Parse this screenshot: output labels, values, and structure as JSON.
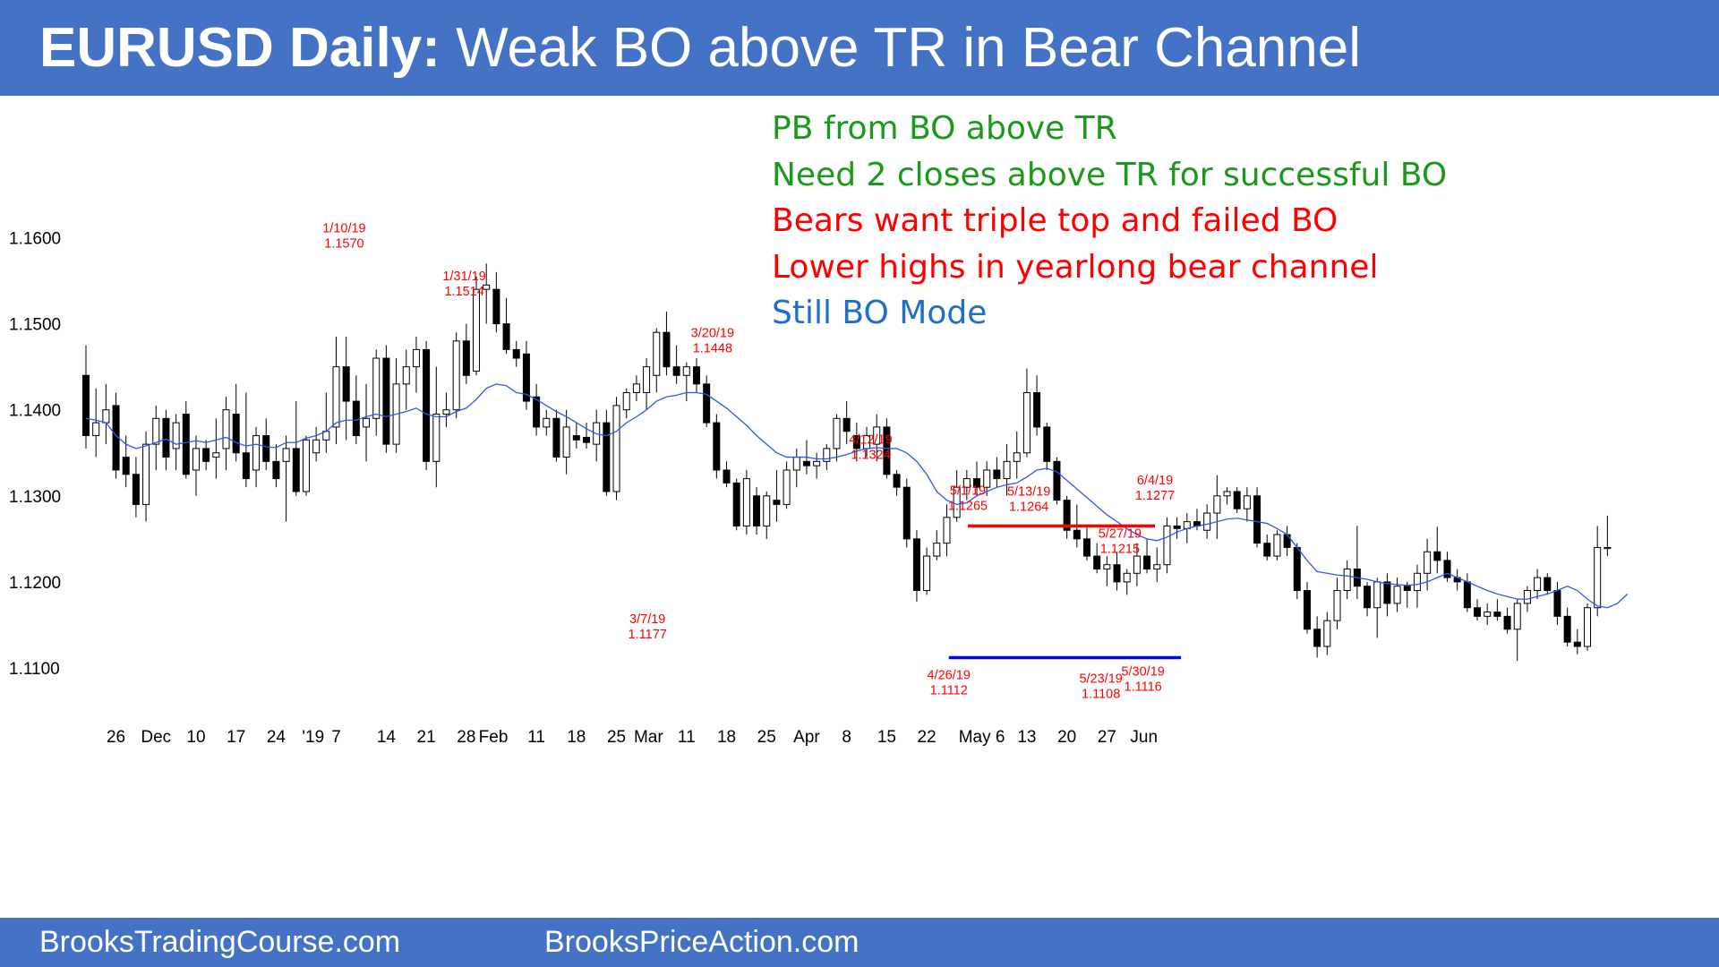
{
  "header": {
    "title_bold": "EURUSD Daily:",
    "title_rest": "Weak BO above TR in Bear Channel"
  },
  "notes": [
    {
      "text": "PB from BO above TR",
      "color": "#1a9a1a"
    },
    {
      "text": "Need 2 closes above TR for successful BO",
      "color": "#1a9a1a"
    },
    {
      "text": "Bears want triple top and failed BO",
      "color": "#ff0000"
    },
    {
      "text": "Lower highs in yearlong bear channel",
      "color": "#ff0000"
    },
    {
      "text": "Still BO Mode",
      "color": "#1f6fc6"
    }
  ],
  "footer": {
    "left": "BrooksTradingCourse.com",
    "right": "BrooksPriceAction.com"
  },
  "colors": {
    "header_bg": "#4472c4",
    "moving_average": "#3355ee",
    "annotation": "#ff0000",
    "resistance": "#ff0000",
    "support": "#0000ff"
  },
  "chart_data": {
    "type": "candlestick",
    "y_ticks": [
      "1.1100",
      "1.1200",
      "1.1300",
      "1.1400",
      "1.1500",
      "1.1600"
    ],
    "ylim": [
      1.1025,
      1.168
    ],
    "x_ticks": [
      "26",
      "Dec",
      "10",
      "17",
      "24",
      "'19",
      "7",
      "14",
      "21",
      "28",
      "Feb",
      "11",
      "18",
      "25",
      "Mar",
      "11",
      "18",
      "25",
      "Apr",
      "8",
      "15",
      "22",
      "May 6",
      "13",
      "20",
      "27",
      "Jun"
    ],
    "x_tick_bars": [
      3,
      7,
      11,
      15,
      19,
      22.7,
      25,
      30,
      34,
      38,
      40.7,
      45,
      49,
      53,
      56.2,
      60,
      64,
      68,
      72,
      76,
      80,
      84,
      89.5,
      94,
      98,
      102,
      105.7
    ],
    "candles": [
      [
        1.144,
        1.1475,
        1.1355,
        1.137
      ],
      [
        1.137,
        1.1425,
        1.1345,
        1.1385
      ],
      [
        1.1385,
        1.143,
        1.136,
        1.14
      ],
      [
        1.1405,
        1.142,
        1.132,
        1.133
      ],
      [
        1.1345,
        1.137,
        1.131,
        1.1325
      ],
      [
        1.1325,
        1.1345,
        1.1275,
        1.129
      ],
      [
        1.129,
        1.1375,
        1.127,
        1.136
      ],
      [
        1.136,
        1.1405,
        1.133,
        1.139
      ],
      [
        1.139,
        1.14,
        1.133,
        1.1345
      ],
      [
        1.1355,
        1.1395,
        1.133,
        1.1385
      ],
      [
        1.1395,
        1.141,
        1.132,
        1.1325
      ],
      [
        1.133,
        1.137,
        1.13,
        1.1355
      ],
      [
        1.1355,
        1.1365,
        1.133,
        1.134
      ],
      [
        1.1345,
        1.139,
        1.132,
        1.135
      ],
      [
        1.1355,
        1.1415,
        1.133,
        1.14
      ],
      [
        1.1395,
        1.143,
        1.134,
        1.135
      ],
      [
        1.135,
        1.142,
        1.131,
        1.132
      ],
      [
        1.133,
        1.138,
        1.131,
        1.137
      ],
      [
        1.137,
        1.139,
        1.133,
        1.134
      ],
      [
        1.134,
        1.136,
        1.131,
        1.132
      ],
      [
        1.134,
        1.137,
        1.127,
        1.1355
      ],
      [
        1.1355,
        1.141,
        1.13,
        1.1305
      ],
      [
        1.1305,
        1.137,
        1.13,
        1.1365
      ],
      [
        1.135,
        1.138,
        1.134,
        1.1365
      ],
      [
        1.1365,
        1.142,
        1.135,
        1.1375
      ],
      [
        1.138,
        1.1485,
        1.136,
        1.145
      ],
      [
        1.145,
        1.1485,
        1.1365,
        1.141
      ],
      [
        1.141,
        1.144,
        1.136,
        1.137
      ],
      [
        1.138,
        1.143,
        1.134,
        1.139
      ],
      [
        1.139,
        1.147,
        1.137,
        1.146
      ],
      [
        1.146,
        1.1475,
        1.135,
        1.136
      ],
      [
        1.136,
        1.146,
        1.135,
        1.143
      ],
      [
        1.143,
        1.147,
        1.14,
        1.145
      ],
      [
        1.145,
        1.1485,
        1.142,
        1.147
      ],
      [
        1.147,
        1.148,
        1.133,
        1.134
      ],
      [
        1.134,
        1.145,
        1.131,
        1.1395
      ],
      [
        1.1395,
        1.142,
        1.138,
        1.14
      ],
      [
        1.14,
        1.149,
        1.139,
        1.148
      ],
      [
        1.148,
        1.15,
        1.143,
        1.144
      ],
      [
        1.1445,
        1.1555,
        1.144,
        1.154
      ],
      [
        1.154,
        1.157,
        1.15,
        1.1545
      ],
      [
        1.154,
        1.156,
        1.149,
        1.15
      ],
      [
        1.15,
        1.153,
        1.1465,
        1.147
      ],
      [
        1.147,
        1.148,
        1.145,
        1.146
      ],
      [
        1.1465,
        1.148,
        1.14,
        1.141
      ],
      [
        1.1415,
        1.143,
        1.137,
        1.138
      ],
      [
        1.138,
        1.14,
        1.137,
        1.139
      ],
      [
        1.139,
        1.14,
        1.134,
        1.1345
      ],
      [
        1.1345,
        1.14,
        1.1325,
        1.138
      ],
      [
        1.137,
        1.1385,
        1.1355,
        1.1365
      ],
      [
        1.1368,
        1.1385,
        1.1355,
        1.1362
      ],
      [
        1.136,
        1.14,
        1.134,
        1.1385
      ],
      [
        1.1385,
        1.14,
        1.13,
        1.1305
      ],
      [
        1.1305,
        1.1415,
        1.1295,
        1.1405
      ]
    ],
    "candles_part2": [
      [
        1.14,
        1.1425,
        1.139,
        1.142
      ],
      [
        1.142,
        1.144,
        1.141,
        1.143
      ],
      [
        1.142,
        1.146,
        1.14,
        1.145
      ],
      [
        1.144,
        1.1495,
        1.142,
        1.149
      ],
      [
        1.149,
        1.1514,
        1.144,
        1.145
      ],
      [
        1.145,
        1.1475,
        1.143,
        1.144
      ],
      [
        1.144,
        1.1455,
        1.141,
        1.145
      ],
      [
        1.145,
        1.146,
        1.142,
        1.143
      ],
      [
        1.143,
        1.144,
        1.138,
        1.1385
      ],
      [
        1.1385,
        1.1395,
        1.132,
        1.133
      ],
      [
        1.133,
        1.134,
        1.131,
        1.1315
      ],
      [
        1.1315,
        1.132,
        1.126,
        1.1265
      ],
      [
        1.1265,
        1.133,
        1.1255,
        1.132
      ],
      [
        1.13,
        1.131,
        1.1255,
        1.1265
      ],
      [
        1.1265,
        1.1305,
        1.125,
        1.13
      ],
      [
        1.1295,
        1.133,
        1.127,
        1.129
      ],
      [
        1.129,
        1.134,
        1.1285,
        1.133
      ],
      [
        1.133,
        1.1355,
        1.131,
        1.1345
      ],
      [
        1.134,
        1.1365,
        1.1325,
        1.1335
      ],
      [
        1.1335,
        1.135,
        1.132,
        1.134
      ],
      [
        1.134,
        1.136,
        1.133,
        1.1355
      ],
      [
        1.1355,
        1.1395,
        1.134,
        1.139
      ],
      [
        1.139,
        1.141,
        1.136,
        1.1375
      ],
      [
        1.137,
        1.1385,
        1.134,
        1.1355
      ],
      [
        1.1355,
        1.138,
        1.1345,
        1.137
      ],
      [
        1.136,
        1.1395,
        1.134,
        1.138
      ]
    ],
    "candles_part3": [
      [
        1.138,
        1.139,
        1.132,
        1.1325
      ],
      [
        1.1325,
        1.133,
        1.13,
        1.131
      ],
      [
        1.131,
        1.132,
        1.124,
        1.125
      ],
      [
        1.125,
        1.126,
        1.1177,
        1.119
      ],
      [
        1.119,
        1.124,
        1.1185,
        1.123
      ],
      [
        1.123,
        1.126,
        1.1225,
        1.1245
      ],
      [
        1.1245,
        1.129,
        1.123,
        1.1275
      ],
      [
        1.1275,
        1.133,
        1.127,
        1.131
      ],
      [
        1.131,
        1.133,
        1.1295,
        1.132
      ],
      [
        1.132,
        1.134,
        1.13,
        1.131
      ],
      [
        1.131,
        1.134,
        1.13,
        1.133
      ],
      [
        1.133,
        1.1345,
        1.131,
        1.132
      ],
      [
        1.132,
        1.136,
        1.13,
        1.134
      ],
      [
        1.134,
        1.1375,
        1.132,
        1.135
      ],
      [
        1.135,
        1.1448,
        1.1345,
        1.142
      ],
      [
        1.142,
        1.144,
        1.137,
        1.138
      ],
      [
        1.138,
        1.1385,
        1.133,
        1.134
      ],
      [
        1.134,
        1.1345,
        1.129,
        1.1295
      ],
      [
        1.1295,
        1.13,
        1.125,
        1.126
      ],
      [
        1.126,
        1.129,
        1.124,
        1.125
      ],
      [
        1.125,
        1.1265,
        1.1225,
        1.123
      ],
      [
        1.123,
        1.1245,
        1.121,
        1.1215
      ],
      [
        1.1215,
        1.123,
        1.1195,
        1.122
      ],
      [
        1.122,
        1.1235,
        1.119,
        1.12
      ],
      [
        1.12,
        1.1215,
        1.1185,
        1.121
      ],
      [
        1.121,
        1.1245,
        1.1195,
        1.123
      ],
      [
        1.123,
        1.125,
        1.121,
        1.1215
      ],
      [
        1.1215,
        1.124,
        1.12,
        1.122
      ],
      [
        1.122,
        1.1275,
        1.121,
        1.1265
      ],
      [
        1.1265,
        1.1275,
        1.125,
        1.1262
      ],
      [
        1.1262,
        1.128,
        1.1245,
        1.127
      ],
      [
        1.127,
        1.1285,
        1.126,
        1.1265
      ],
      [
        1.126,
        1.129,
        1.125,
        1.128
      ],
      [
        1.128,
        1.1324,
        1.125,
        1.13
      ],
      [
        1.13,
        1.131,
        1.129,
        1.1305
      ],
      [
        1.1305,
        1.131,
        1.128,
        1.1285
      ],
      [
        1.1285,
        1.131,
        1.127,
        1.13
      ],
      [
        1.13,
        1.131,
        1.124,
        1.1245
      ],
      [
        1.1245,
        1.1255,
        1.1225,
        1.123
      ],
      [
        1.123,
        1.126,
        1.1225,
        1.1255
      ],
      [
        1.1255,
        1.1265,
        1.123,
        1.124
      ],
      [
        1.124,
        1.1245,
        1.118,
        1.119
      ],
      [
        1.119,
        1.12,
        1.114,
        1.1145
      ],
      [
        1.1145,
        1.116,
        1.1112,
        1.1125
      ],
      [
        1.1125,
        1.1165,
        1.1115,
        1.1155
      ],
      [
        1.1155,
        1.1205,
        1.1145,
        1.119
      ],
      [
        1.119,
        1.1225,
        1.118,
        1.1215
      ],
      [
        1.1215,
        1.1265,
        1.118,
        1.1195
      ],
      [
        1.1195,
        1.12,
        1.116,
        1.117
      ],
      [
        1.117,
        1.1205,
        1.1135,
        1.12
      ],
      [
        1.12,
        1.121,
        1.116,
        1.1175
      ],
      [
        1.1175,
        1.1205,
        1.1165,
        1.1195
      ],
      [
        1.1195,
        1.12,
        1.117,
        1.119
      ],
      [
        1.119,
        1.122,
        1.117,
        1.121
      ],
      [
        1.121,
        1.125,
        1.119,
        1.1235
      ],
      [
        1.1235,
        1.1264,
        1.121,
        1.1225
      ],
      [
        1.1225,
        1.1235,
        1.12,
        1.1205
      ],
      [
        1.1205,
        1.1215,
        1.119,
        1.12
      ],
      [
        1.12,
        1.121,
        1.1165,
        1.117
      ],
      [
        1.117,
        1.118,
        1.1155,
        1.116
      ],
      [
        1.116,
        1.1175,
        1.115,
        1.1165
      ],
      [
        1.1165,
        1.118,
        1.1155,
        1.116
      ],
      [
        1.116,
        1.117,
        1.114,
        1.1145
      ],
      [
        1.1145,
        1.118,
        1.1108,
        1.1175
      ],
      [
        1.1175,
        1.1195,
        1.1165,
        1.119
      ],
      [
        1.119,
        1.1215,
        1.118,
        1.1205
      ],
      [
        1.1205,
        1.121,
        1.1185,
        1.119
      ],
      [
        1.119,
        1.12,
        1.115,
        1.116
      ],
      [
        1.116,
        1.117,
        1.1125,
        1.113
      ],
      [
        1.113,
        1.1145,
        1.1116,
        1.1125
      ],
      [
        1.1125,
        1.1175,
        1.112,
        1.117
      ],
      [
        1.117,
        1.1265,
        1.116,
        1.124
      ],
      [
        1.124,
        1.1277,
        1.123,
        1.124
      ]
    ],
    "moving_average": [
      1.139,
      1.1388,
      1.1385,
      1.137,
      1.136,
      1.1355,
      1.1358,
      1.1362,
      1.1366,
      1.136,
      1.1362,
      1.1364,
      1.1362,
      1.1365,
      1.1368,
      1.1362,
      1.1358,
      1.136,
      1.1357,
      1.1356,
      1.1362,
      1.1362,
      1.1367,
      1.137,
      1.1375,
      1.1385,
      1.1388,
      1.1388,
      1.1392,
      1.1395,
      1.1392,
      1.1395,
      1.1398,
      1.1402,
      1.1395,
      1.1392,
      1.1392,
      1.1398,
      1.1402,
      1.1412,
      1.1425,
      1.143,
      1.1428,
      1.142,
      1.1418,
      1.1412,
      1.1405,
      1.1398,
      1.1392,
      1.1385,
      1.1378,
      1.1372,
      1.137,
      1.1375,
      1.1385,
      1.1392,
      1.14,
      1.141,
      1.1415,
      1.1417,
      1.142,
      1.142,
      1.1418,
      1.141,
      1.1402,
      1.1392,
      1.1382,
      1.137,
      1.136,
      1.135,
      1.1345,
      1.1345,
      1.1345,
      1.1343,
      1.1343,
      1.1345,
      1.1348,
      1.1352,
      1.1355,
      1.1356,
      1.1355,
      1.1355,
      1.135,
      1.134,
      1.1325,
      1.1305,
      1.1295,
      1.129,
      1.1292,
      1.13,
      1.1305,
      1.131,
      1.1313,
      1.1315,
      1.1322,
      1.133,
      1.1332,
      1.1328,
      1.1318,
      1.1308,
      1.1298,
      1.1288,
      1.1278,
      1.127,
      1.1262,
      1.1255,
      1.125,
      1.1248,
      1.1252,
      1.1258,
      1.1262,
      1.1265,
      1.1267,
      1.127,
      1.1273,
      1.1274,
      1.1272,
      1.127,
      1.1268,
      1.1262,
      1.1255,
      1.124,
      1.1225,
      1.1212,
      1.121,
      1.1208,
      1.1207,
      1.1205,
      1.1203,
      1.12,
      1.1198,
      1.1197,
      1.1196,
      1.1197,
      1.12,
      1.1205,
      1.121,
      1.1205,
      1.12,
      1.1195,
      1.119,
      1.1186,
      1.1183,
      1.118,
      1.118,
      1.1183,
      1.1186,
      1.119,
      1.1195,
      1.119,
      1.118,
      1.1172,
      1.117,
      1.1175,
      1.1186
    ],
    "annotations": [
      {
        "bar": 25.8,
        "date": "1/10/19",
        "price": "1.1570",
        "pos": "above",
        "y": 1.157
      },
      {
        "bar": 37.8,
        "date": "1/31/19",
        "price": "1.1514",
        "pos": "above",
        "y": 1.1514
      },
      {
        "bar": 62.6,
        "date": "3/20/19",
        "price": "1.1448",
        "pos": "above",
        "y": 1.1448
      },
      {
        "bar": 78.4,
        "date": "4/12/19",
        "price": "1.1324",
        "pos": "above",
        "y": 1.1324
      },
      {
        "bar": 88.1,
        "date": "5/1/19",
        "price": "1.1265",
        "pos": "above",
        "y": 1.1265
      },
      {
        "bar": 94.2,
        "date": "5/13/19",
        "price": "1.1264",
        "pos": "above",
        "y": 1.1264
      },
      {
        "bar": 103.3,
        "date": "5/27/19",
        "price": "1.1215",
        "pos": "above",
        "y": 1.1215
      },
      {
        "bar": 106.8,
        "date": "6/4/19",
        "price": "1.1277",
        "pos": "above",
        "y": 1.1277
      },
      {
        "bar": 56.1,
        "date": "3/7/19",
        "price": "1.1177",
        "pos": "below",
        "y": 1.1177
      },
      {
        "bar": 86.2,
        "date": "4/26/19",
        "price": "1.1112",
        "pos": "below",
        "y": 1.1112
      },
      {
        "bar": 101.4,
        "date": "5/23/19",
        "price": "1.1108",
        "pos": "below",
        "y": 1.1108
      },
      {
        "bar": 105.6,
        "date": "5/30/19",
        "price": "1.1116",
        "pos": "below",
        "y": 1.1116
      }
    ],
    "resistance": {
      "y": 1.1265,
      "from_bar": 88.1,
      "to_bar": 106.8
    },
    "support": {
      "y": 1.1112,
      "from_bar": 86.2,
      "to_bar": 109.4
    }
  }
}
